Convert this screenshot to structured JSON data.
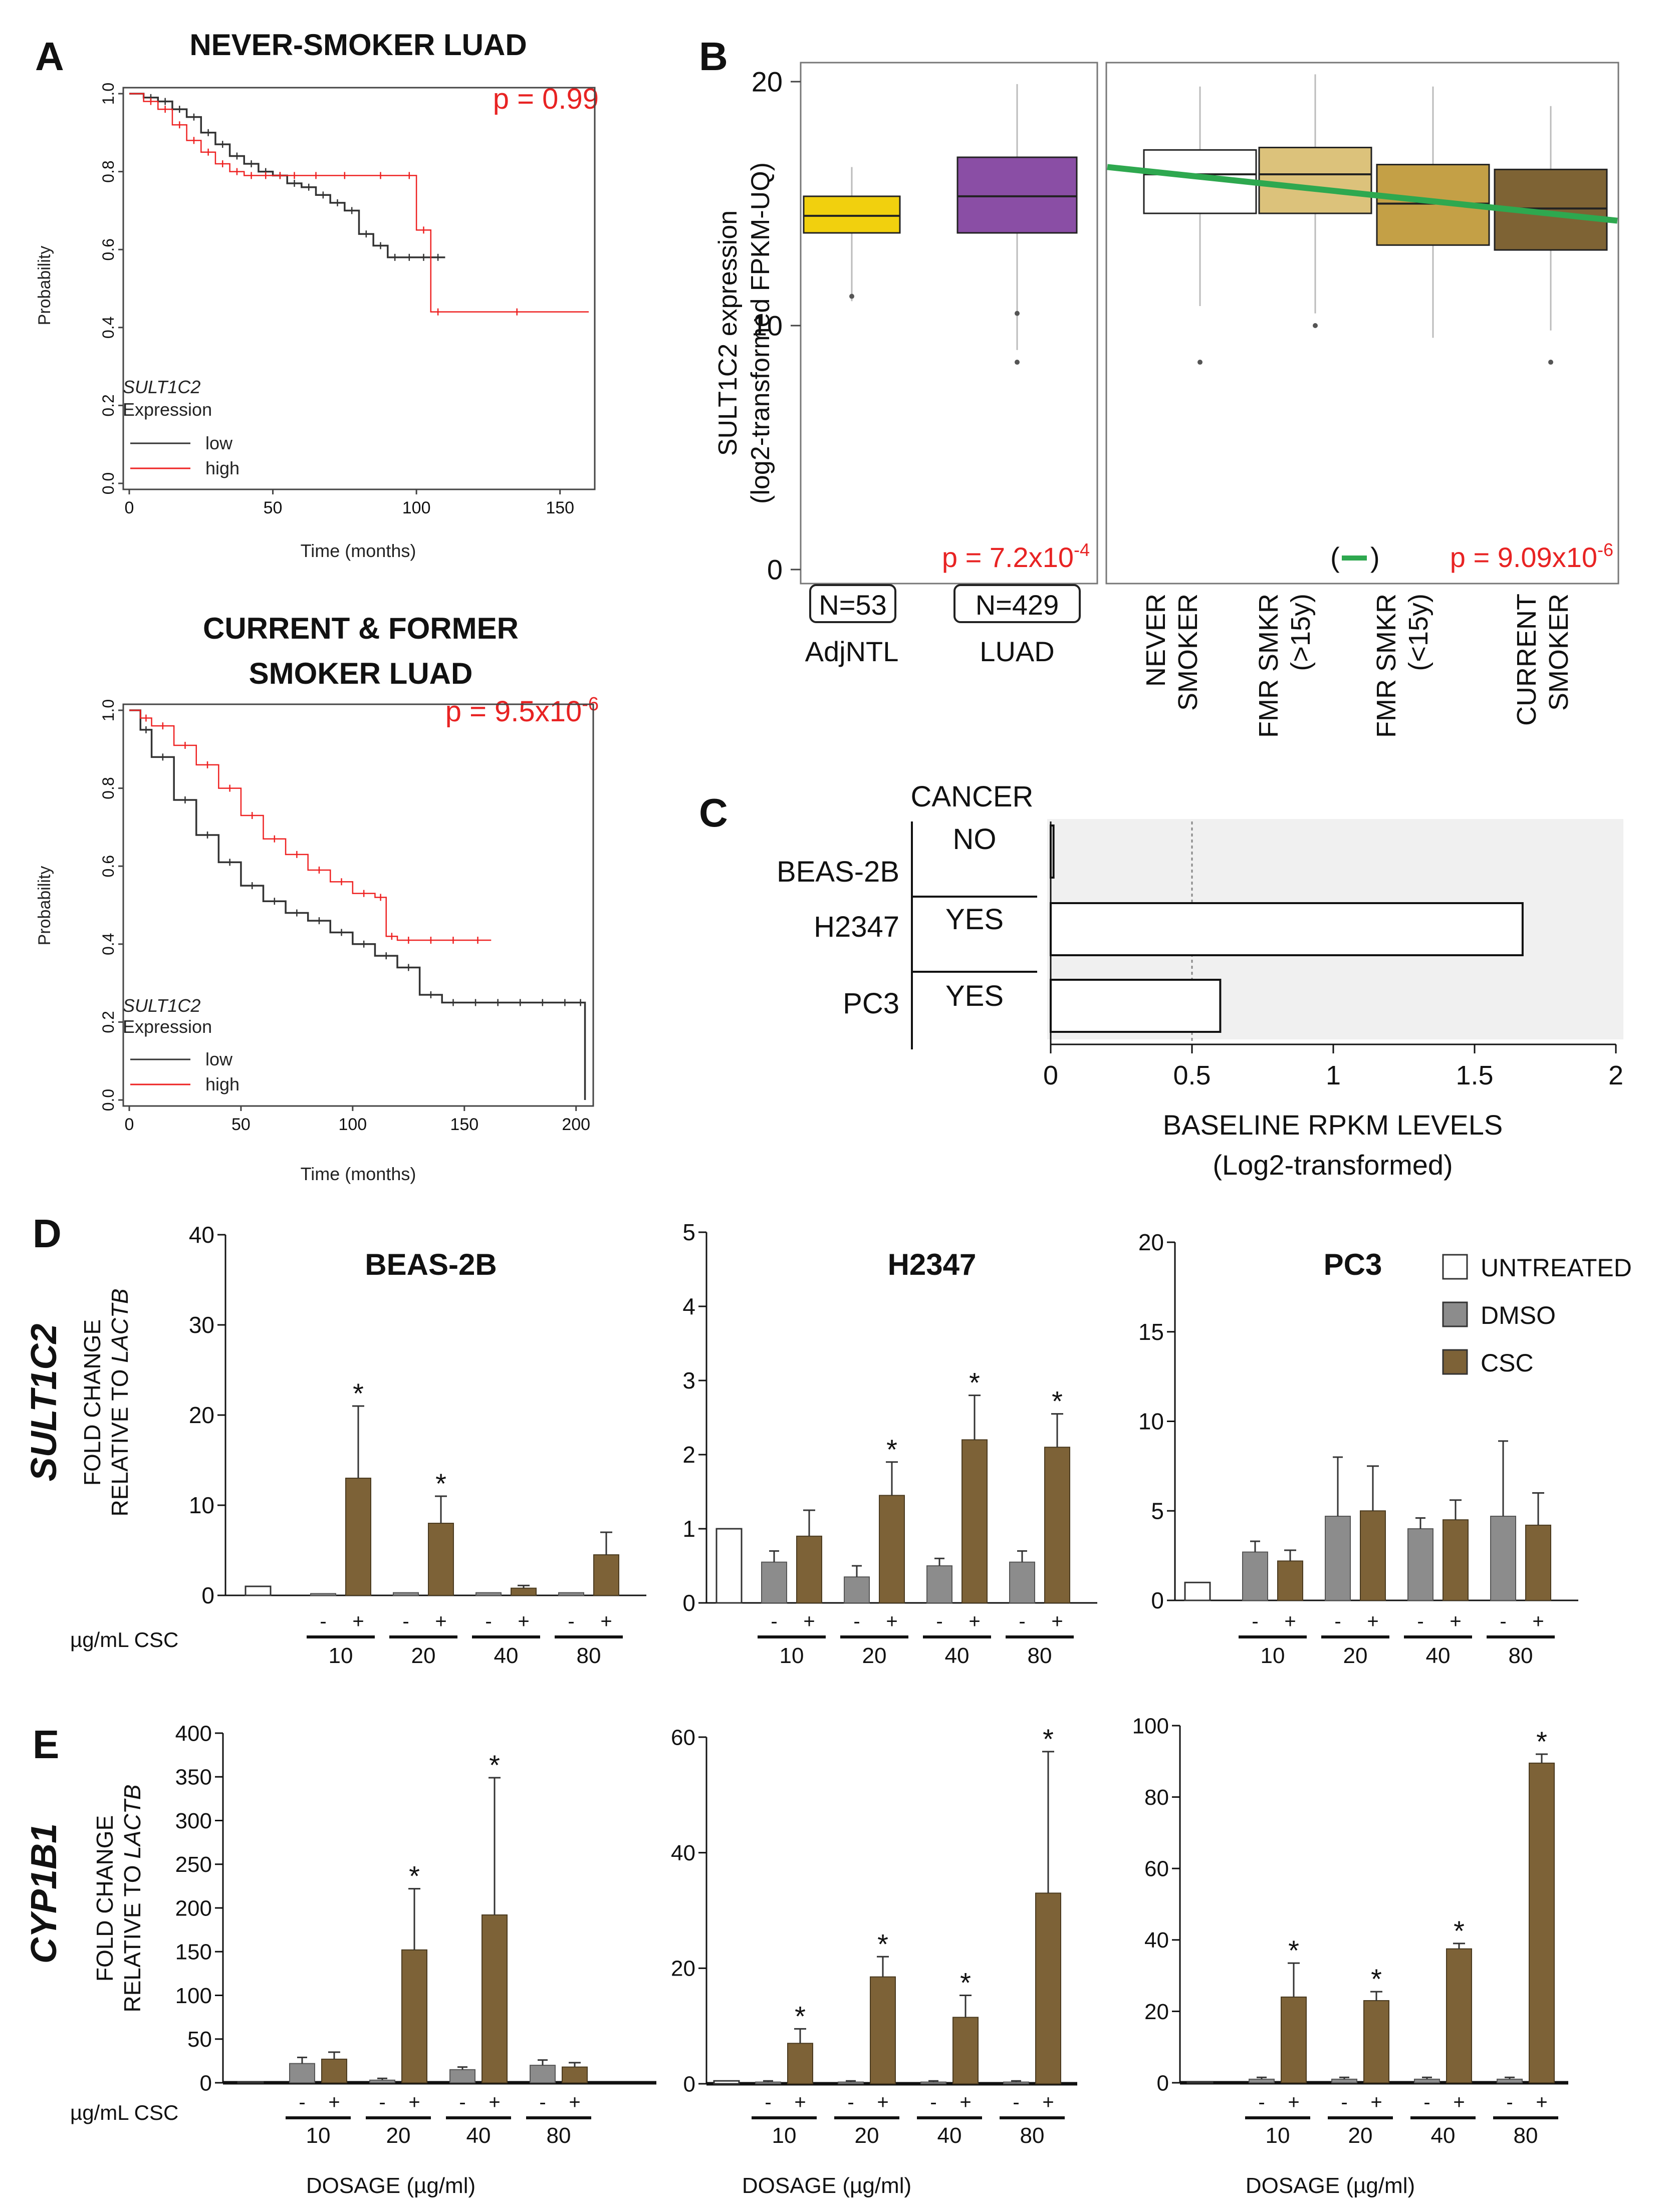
{
  "colors": {
    "low": "#333333",
    "high": "#ee2222",
    "untreated": "#ffffff",
    "dmso": "#8c8c8c",
    "csc": "#7d6237",
    "red": "#e82323",
    "green": "#2ea84f"
  },
  "panel_a": {
    "letter": "A",
    "top": {
      "title": "NEVER-SMOKER LUAD",
      "p": "p = 0.99"
    },
    "bottom": {
      "title_1": "CURRENT & FORMER",
      "title_2": "SMOKER LUAD",
      "p": "p = 9.5x10",
      "p_exp": "-6"
    },
    "gene": "SULT1C2",
    "expression": "Expression",
    "low": "low",
    "high": "high",
    "ylabel": "Probability",
    "xlabel": "Time (months)"
  },
  "panel_b": {
    "letter": "B",
    "ylabel_1": "SULT1C2 expression",
    "ylabel_2": "(log2-transformed FPKM-UQ)",
    "p_left": "p = 7.2x10",
    "p_left_exp": "-4",
    "p_right": "p = 9.09x10",
    "p_right_exp": "-6",
    "n_adj": "N=53",
    "n_luad": "N=429",
    "adj": "AdjNTL",
    "luad": "LUAD",
    "cat_never_1": "NEVER",
    "cat_never_2": "SMOKER",
    "cat_fmr1_1": "FMR SMKR",
    "cat_fmr1_2": "(>15y)",
    "cat_fmr2_1": "FMR SMKR",
    "cat_fmr2_2": "(<15y)",
    "cat_cur_1": "CURRENT",
    "cat_cur_2": "SMOKER",
    "legend_open": "(",
    "legend_close": ")"
  },
  "panel_c": {
    "letter": "C",
    "cancer": "CANCER",
    "xlabel_1": "BASELINE RPKM LEVELS",
    "xlabel_2": "(Log2-transformed)",
    "threshold": 0.5
  },
  "panel_d": {
    "letter": "D",
    "gene": "SULT1C2",
    "ylabel_1": "FOLD CHANGE",
    "ylabel_2": "RELATIVE TO",
    "ylabel_gene": "LACTB",
    "csc": "µg/mL CSC",
    "minus": "-",
    "plus": "+",
    "legend_untreated": "UNTREATED",
    "legend_dmso": "DMSO",
    "legend_csc": "CSC",
    "titles": [
      "BEAS-2B",
      "H2347",
      "PC3"
    ],
    "star": "*"
  },
  "panel_e": {
    "letter": "E",
    "gene": "CYP1B1",
    "xlabel": "DOSAGE (µg/ml)"
  },
  "chart_data": [
    {
      "id": "A-never",
      "type": "line",
      "title": "NEVER-SMOKER LUAD",
      "xlabel": "Time (months)",
      "ylabel": "Probability",
      "xlim": [
        0,
        160
      ],
      "ylim": [
        0,
        1
      ],
      "xticks": [
        0,
        50,
        100,
        150
      ],
      "yticks": [
        0,
        0.2,
        0.4,
        0.6,
        0.8,
        1.0
      ],
      "series": [
        {
          "name": "low",
          "x": [
            0,
            5,
            10,
            15,
            20,
            25,
            30,
            35,
            40,
            45,
            50,
            55,
            60,
            65,
            70,
            75,
            80,
            85,
            90,
            95,
            100,
            105,
            110
          ],
          "y": [
            1,
            0.99,
            0.98,
            0.96,
            0.94,
            0.9,
            0.87,
            0.84,
            0.82,
            0.8,
            0.79,
            0.77,
            0.76,
            0.74,
            0.72,
            0.7,
            0.64,
            0.61,
            0.58,
            0.58,
            0.58,
            0.58,
            0.58
          ]
        },
        {
          "name": "high",
          "x": [
            0,
            5,
            10,
            15,
            20,
            25,
            30,
            35,
            40,
            45,
            50,
            55,
            60,
            70,
            80,
            95,
            100,
            105,
            110,
            160
          ],
          "y": [
            1,
            0.98,
            0.96,
            0.92,
            0.88,
            0.85,
            0.82,
            0.8,
            0.79,
            0.79,
            0.79,
            0.79,
            0.79,
            0.79,
            0.79,
            0.79,
            0.65,
            0.44,
            0.44,
            0.44
          ]
        }
      ]
    },
    {
      "id": "A-smoker",
      "type": "line",
      "title": "CURRENT & FORMER SMOKER LUAD",
      "xlabel": "Time (months)",
      "ylabel": "Probability",
      "xlim": [
        0,
        205
      ],
      "ylim": [
        0,
        1
      ],
      "xticks": [
        0,
        50,
        100,
        150,
        200
      ],
      "yticks": [
        0,
        0.2,
        0.4,
        0.6,
        0.8,
        1.0
      ],
      "series": [
        {
          "name": "low",
          "x": [
            0,
            5,
            10,
            20,
            30,
            40,
            50,
            60,
            70,
            80,
            90,
            100,
            110,
            120,
            130,
            140,
            150,
            160,
            170,
            180,
            190,
            200,
            204
          ],
          "y": [
            1,
            0.95,
            0.88,
            0.77,
            0.68,
            0.61,
            0.55,
            0.51,
            0.48,
            0.46,
            0.43,
            0.4,
            0.37,
            0.34,
            0.27,
            0.25,
            0.25,
            0.25,
            0.25,
            0.25,
            0.25,
            0.25,
            0
          ]
        },
        {
          "name": "high",
          "x": [
            0,
            5,
            10,
            20,
            30,
            40,
            50,
            60,
            70,
            80,
            90,
            100,
            110,
            115,
            120,
            130,
            140,
            150,
            162
          ],
          "y": [
            1,
            0.98,
            0.96,
            0.91,
            0.86,
            0.8,
            0.73,
            0.67,
            0.63,
            0.59,
            0.56,
            0.53,
            0.52,
            0.42,
            0.41,
            0.41,
            0.41,
            0.41,
            0.41
          ]
        }
      ]
    },
    {
      "id": "B",
      "type": "box",
      "ylabel": "SULT1C2 expression (log2-transformed FPKM-UQ)",
      "ylim": [
        0,
        20
      ],
      "yticks": [
        0,
        10,
        20
      ],
      "boxes": [
        {
          "name": "AdjNTL",
          "q1": 13.8,
          "median": 14.5,
          "q3": 15.3,
          "whisker_low": 11.0,
          "whisker_high": 16.5,
          "outliers": [
            11.2
          ],
          "color": "#f1d00e"
        },
        {
          "name": "LUAD",
          "q1": 13.8,
          "median": 15.3,
          "q3": 16.9,
          "whisker_low": 9.0,
          "whisker_high": 19.9,
          "outliers": [
            8.5,
            10.5
          ],
          "color": "#8a4ea5"
        },
        {
          "name": "NEVER SMOKER",
          "q1": 14.6,
          "median": 16.2,
          "q3": 17.2,
          "whisker_low": 10.8,
          "whisker_high": 19.8,
          "outliers": [
            8.5
          ],
          "color": "#ffffff"
        },
        {
          "name": "FMR SMKR (>15y)",
          "q1": 14.6,
          "median": 16.2,
          "q3": 17.3,
          "whisker_low": 10.5,
          "whisker_high": 20.3,
          "outliers": [
            10.0
          ],
          "color": "#dcc27b"
        },
        {
          "name": "FMR SMKR (<15y)",
          "q1": 13.3,
          "median": 15.0,
          "q3": 16.6,
          "whisker_low": 9.5,
          "whisker_high": 19.8,
          "outliers": [],
          "color": "#c4a046"
        },
        {
          "name": "CURRENT SMOKER",
          "q1": 13.1,
          "median": 14.8,
          "q3": 16.4,
          "whisker_low": 9.8,
          "whisker_high": 19.0,
          "outliers": [
            8.5
          ],
          "color": "#7e6334"
        }
      ],
      "trend": {
        "from": 16.5,
        "to": 14.3
      }
    },
    {
      "id": "C",
      "type": "bar",
      "orientation": "horizontal",
      "categories": [
        "BEAS-2B",
        "H2347",
        "PC3"
      ],
      "cancer": [
        "NO",
        "YES",
        "YES"
      ],
      "values": [
        0.01,
        1.67,
        0.6
      ],
      "xlabel": "BASELINE RPKM LEVELS (Log2-transformed)",
      "xlim": [
        0,
        2
      ],
      "xticks": [
        "0",
        "0.5",
        "1",
        "1.5",
        "2"
      ]
    },
    {
      "id": "D-BEAS-2B",
      "type": "bar",
      "title": "BEAS-2B",
      "ylim": [
        0,
        40
      ],
      "yticks": [
        0,
        10,
        20,
        30,
        40
      ],
      "dosages": [
        "10",
        "20",
        "40",
        "80"
      ],
      "untreated": 1.0,
      "dmso": [
        0.2,
        0.3,
        0.3,
        0.3
      ],
      "dmso_err": [
        0,
        0,
        0,
        0
      ],
      "csc": [
        13.0,
        8.0,
        0.8,
        4.5
      ],
      "csc_err": [
        8.0,
        3.0,
        0.3,
        2.5
      ],
      "sig": [
        true,
        true,
        false,
        false
      ]
    },
    {
      "id": "D-H2347",
      "type": "bar",
      "title": "H2347",
      "ylim": [
        0,
        5
      ],
      "yticks": [
        0,
        1,
        2,
        3,
        4,
        5
      ],
      "dosages": [
        "10",
        "20",
        "40",
        "80"
      ],
      "untreated": 1.0,
      "dmso": [
        0.55,
        0.35,
        0.5,
        0.55
      ],
      "dmso_err": [
        0.15,
        0.15,
        0.1,
        0.15
      ],
      "csc": [
        0.9,
        1.45,
        2.2,
        2.1
      ],
      "csc_err": [
        0.35,
        0.45,
        0.6,
        0.45
      ],
      "sig": [
        false,
        true,
        true,
        true
      ]
    },
    {
      "id": "D-PC3",
      "type": "bar",
      "title": "PC3",
      "ylim": [
        0,
        20
      ],
      "yticks": [
        0,
        5,
        10,
        15,
        20
      ],
      "dosages": [
        "10",
        "20",
        "40",
        "80"
      ],
      "untreated": 1.0,
      "dmso": [
        2.7,
        4.7,
        4.0,
        4.7
      ],
      "dmso_err": [
        0.6,
        3.3,
        0.6,
        4.2
      ],
      "csc": [
        2.2,
        5.0,
        4.5,
        4.2
      ],
      "csc_err": [
        0.6,
        2.5,
        1.1,
        1.8
      ],
      "sig": [
        false,
        false,
        false,
        false
      ]
    },
    {
      "id": "E-BEAS-2B",
      "type": "bar",
      "ylim": [
        0,
        400
      ],
      "yticks": [
        0,
        50,
        100,
        150,
        200,
        250,
        300,
        350,
        400
      ],
      "dosages": [
        "10",
        "20",
        "40",
        "80"
      ],
      "untreated": 1.0,
      "dmso": [
        22,
        3,
        15,
        20
      ],
      "dmso_err": [
        7,
        2,
        3,
        6
      ],
      "csc": [
        27,
        152,
        192,
        18
      ],
      "csc_err": [
        8,
        70,
        157,
        5
      ],
      "sig": [
        false,
        true,
        true,
        false
      ]
    },
    {
      "id": "E-H2347",
      "type": "bar",
      "ylim": [
        0,
        60
      ],
      "yticks": [
        0,
        20,
        40,
        60
      ],
      "dosages": [
        "10",
        "20",
        "40",
        "80"
      ],
      "untreated": 0.5,
      "dmso": [
        0.3,
        0.3,
        0.3,
        0.3
      ],
      "dmso_err": [
        0.2,
        0.2,
        0.2,
        0.2
      ],
      "csc": [
        7,
        18.5,
        11.5,
        33
      ],
      "csc_err": [
        2.5,
        3.5,
        3.8,
        24.5
      ],
      "sig": [
        true,
        true,
        true,
        true
      ]
    },
    {
      "id": "E-PC3",
      "type": "bar",
      "ylim": [
        0,
        100
      ],
      "yticks": [
        0,
        20,
        40,
        60,
        80,
        100
      ],
      "dosages": [
        "10",
        "20",
        "40",
        "80"
      ],
      "untreated": 0.3,
      "dmso": [
        1,
        1,
        1,
        1
      ],
      "dmso_err": [
        0.5,
        0.5,
        0.5,
        0.5
      ],
      "csc": [
        24,
        23,
        37.5,
        89.5
      ],
      "csc_err": [
        9.5,
        2.5,
        1.5,
        2.5
      ],
      "sig": [
        true,
        true,
        true,
        true
      ]
    }
  ]
}
